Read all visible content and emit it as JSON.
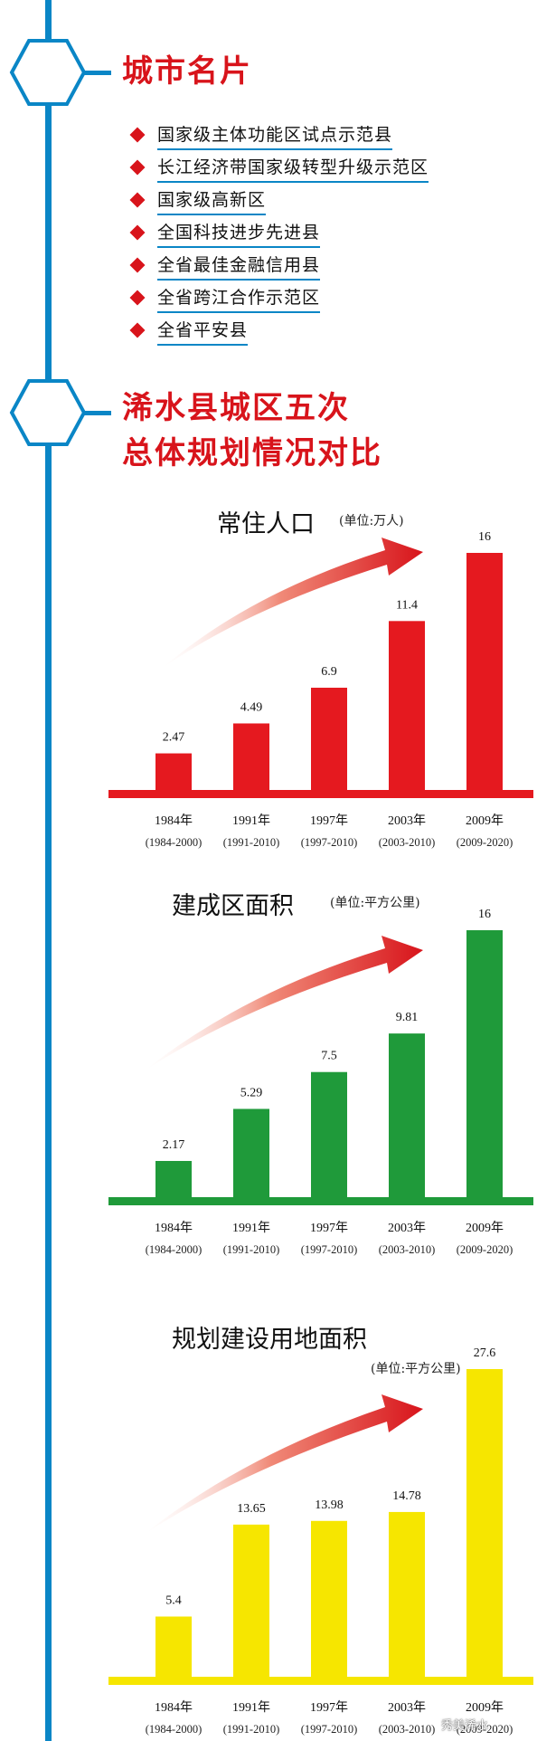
{
  "colors": {
    "spine": "#0a86c6",
    "accent_red": "#d8141b",
    "bar_green": "#1f9a3a",
    "bar_yellow": "#f6e600"
  },
  "section1": {
    "title": "城市名片",
    "items": [
      "国家级主体功能区试点示范县",
      "长江经济带国家级转型升级示范区",
      "国家级高新区",
      "全国科技进步先进县",
      "全省最佳金融信用县",
      "全省跨江合作示范区",
      "全省平安县"
    ]
  },
  "section2": {
    "title_line1": "浠水县城区五次",
    "title_line2": "总体规划情况对比"
  },
  "chart_data": [
    {
      "type": "bar",
      "title": "常住人口",
      "unit": "(单位:万人)",
      "color": "#e5191f",
      "categories": [
        "1984年",
        "1991年",
        "1997年",
        "2003年",
        "2009年"
      ],
      "periods": [
        "(1984-2000)",
        "(1991-2010)",
        "(1997-2010)",
        "(2003-2010)",
        "(2009-2020)"
      ],
      "values": [
        2.47,
        4.49,
        6.9,
        11.4,
        16
      ],
      "value_labels": [
        "2.47",
        "4.49",
        "6.9",
        "11.4",
        "16"
      ],
      "ylim": [
        0,
        16
      ]
    },
    {
      "type": "bar",
      "title": "建成区面积",
      "unit": "(单位:平方公里)",
      "color": "#1f9a3a",
      "categories": [
        "1984年",
        "1991年",
        "1997年",
        "2003年",
        "2009年"
      ],
      "periods": [
        "(1984-2000)",
        "(1991-2010)",
        "(1997-2010)",
        "(2003-2010)",
        "(2009-2020)"
      ],
      "values": [
        2.17,
        5.29,
        7.5,
        9.81,
        16
      ],
      "value_labels": [
        "2.17",
        "5.29",
        "7.5",
        "9.81",
        "16"
      ],
      "ylim": [
        0,
        16
      ]
    },
    {
      "type": "bar",
      "title": "规划建设用地面积",
      "unit": "(单位:平方公里)",
      "color": "#f6e600",
      "categories": [
        "1984年",
        "1991年",
        "1997年",
        "2003年",
        "2009年"
      ],
      "periods": [
        "(1984-2000)",
        "(1991-2010)",
        "(1997-2010)",
        "(2003-2010)",
        "(2009-2020)"
      ],
      "values": [
        5.4,
        13.65,
        13.98,
        14.78,
        27.6
      ],
      "value_labels": [
        "5.4",
        "13.65",
        "13.98",
        "14.78",
        "27.6"
      ],
      "ylim": [
        0,
        27.6
      ]
    }
  ],
  "watermark": "秀美浠水"
}
